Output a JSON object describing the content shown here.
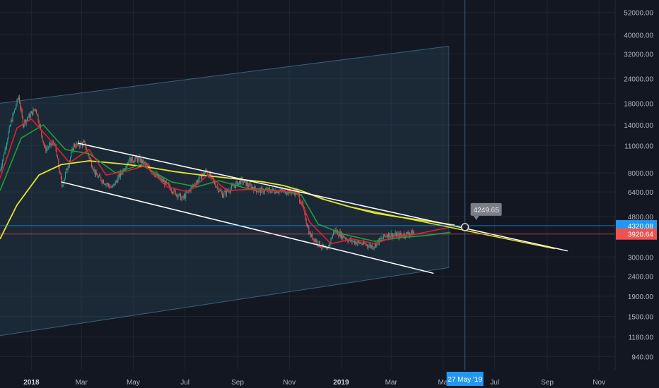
{
  "colors": {
    "background": "#131722",
    "grid": "#1f2430",
    "candle_up": "#26a69a",
    "candle_down": "#ef5350",
    "ma_fast": "#e0212e",
    "ma_mid": "#1f9e3a",
    "ma_slow": "#e7e730",
    "trendline": "#ffffff",
    "channel_fill": "#2a4a5e",
    "channel_border": "#4a8fb0",
    "price_tag_blue": "#2196f3",
    "price_tag_red": "#ef5350",
    "date_tag": "#2196f3",
    "crosshair": "#3f6e8f",
    "callout_bg": "#7b7e86"
  },
  "chart_data": {
    "type": "candlestick",
    "y_scale": "log",
    "ylim": [
      800,
      60000
    ],
    "xlim": [
      "2017-11-25",
      "2019-11-20"
    ],
    "grid": true,
    "x_tick_labels": [
      {
        "date": "2018-01-01",
        "label": "2018"
      },
      {
        "date": "2018-03-01",
        "label": "Mar"
      },
      {
        "date": "2018-05-01",
        "label": "May"
      },
      {
        "date": "2018-07-01",
        "label": "Jul"
      },
      {
        "date": "2018-09-01",
        "label": "Sep"
      },
      {
        "date": "2018-11-01",
        "label": "Nov"
      },
      {
        "date": "2019-01-01",
        "label": "2019"
      },
      {
        "date": "2019-03-01",
        "label": "Mar"
      },
      {
        "date": "2019-05-01",
        "label": "Ma"
      },
      {
        "date": "2019-07-01",
        "label": "Jul"
      },
      {
        "date": "2019-09-01",
        "label": "Sep"
      },
      {
        "date": "2019-11-01",
        "label": "Nov"
      }
    ],
    "y_tick_labels": [
      {
        "value": 52000,
        "label": "52000.00"
      },
      {
        "value": 40000,
        "label": "40000.00"
      },
      {
        "value": 32000,
        "label": "32000.00"
      },
      {
        "value": 24000,
        "label": "24000.00"
      },
      {
        "value": 18000,
        "label": "18000.00"
      },
      {
        "value": 14000,
        "label": "14000.00"
      },
      {
        "value": 11000,
        "label": "11000.00"
      },
      {
        "value": 8000,
        "label": "8000.00"
      },
      {
        "value": 6400,
        "label": "6400.00"
      },
      {
        "value": 4800,
        "label": "4800.00"
      },
      {
        "value": 3000,
        "label": "3000.00"
      },
      {
        "value": 2400,
        "label": "2400.00"
      },
      {
        "value": 1900,
        "label": "1900.00"
      },
      {
        "value": 1500,
        "label": "1500.00"
      },
      {
        "value": 1180,
        "label": "1180.00"
      },
      {
        "value": 940,
        "label": "940.00"
      }
    ],
    "price_tags": [
      {
        "value": 4320.08,
        "label": "4320.08",
        "color": "blue"
      },
      {
        "value": 3920.64,
        "label": "3920.64",
        "color": "red"
      }
    ],
    "crosshair": {
      "date": "2019-05-27",
      "label": "27 May '19"
    },
    "callout": {
      "date": "2019-05-27",
      "value": 4249.65,
      "label": "4249.65"
    },
    "channel": {
      "upper": [
        [
          "2017-11-25",
          18000
        ],
        [
          "2019-05-08",
          35000
        ]
      ],
      "lower": [
        [
          "2017-11-25",
          1200
        ],
        [
          "2019-05-08",
          2650
        ]
      ]
    },
    "trendlines": [
      {
        "name": "upper",
        "from": [
          "2018-02-25",
          11300
        ],
        "to": [
          "2019-09-25",
          3220
        ]
      },
      {
        "name": "lower",
        "from": [
          "2018-02-05",
          7200
        ],
        "to": [
          "2019-04-20",
          2480
        ]
      },
      {
        "name": "ma-projection",
        "from": [
          "2019-01-10",
          5400
        ],
        "to": [
          "2019-09-10",
          3300
        ]
      }
    ],
    "price_path": [
      [
        "2017-11-25",
        8200
      ],
      [
        "2017-12-08",
        14500
      ],
      [
        "2017-12-17",
        19500
      ],
      [
        "2017-12-22",
        14200
      ],
      [
        "2018-01-06",
        17000
      ],
      [
        "2018-01-17",
        10500
      ],
      [
        "2018-01-28",
        11400
      ],
      [
        "2018-02-06",
        6900
      ],
      [
        "2018-02-20",
        11000
      ],
      [
        "2018-03-04",
        11300
      ],
      [
        "2018-03-18",
        7800
      ],
      [
        "2018-04-06",
        6700
      ],
      [
        "2018-04-26",
        9300
      ],
      [
        "2018-05-08",
        9400
      ],
      [
        "2018-06-01",
        7500
      ],
      [
        "2018-06-28",
        5900
      ],
      [
        "2018-07-08",
        6700
      ],
      [
        "2018-07-26",
        8200
      ],
      [
        "2018-08-14",
        6200
      ],
      [
        "2018-09-05",
        7300
      ],
      [
        "2018-09-25",
        6500
      ],
      [
        "2018-10-20",
        6500
      ],
      [
        "2018-11-10",
        6400
      ],
      [
        "2018-11-16",
        5500
      ],
      [
        "2018-11-25",
        3900
      ],
      [
        "2018-12-15",
        3200
      ],
      [
        "2018-12-24",
        4100
      ],
      [
        "2019-01-10",
        3650
      ],
      [
        "2019-02-07",
        3400
      ],
      [
        "2019-02-24",
        3900
      ],
      [
        "2019-03-10",
        3850
      ],
      [
        "2019-03-28",
        4000
      ]
    ],
    "ma_fast": [
      [
        "2017-11-25",
        7500
      ],
      [
        "2017-12-15",
        13500
      ],
      [
        "2018-01-01",
        15000
      ],
      [
        "2018-01-25",
        11500
      ],
      [
        "2018-02-15",
        9000
      ],
      [
        "2018-03-10",
        10500
      ],
      [
        "2018-03-30",
        7800
      ],
      [
        "2018-04-25",
        8200
      ],
      [
        "2018-05-15",
        8700
      ],
      [
        "2018-06-10",
        6800
      ],
      [
        "2018-07-05",
        6400
      ],
      [
        "2018-07-28",
        7800
      ],
      [
        "2018-08-20",
        6500
      ],
      [
        "2018-09-15",
        6600
      ],
      [
        "2018-10-15",
        6500
      ],
      [
        "2018-11-10",
        6400
      ],
      [
        "2018-11-25",
        4500
      ],
      [
        "2018-12-20",
        3500
      ],
      [
        "2019-01-15",
        3700
      ],
      [
        "2019-02-10",
        3500
      ],
      [
        "2019-03-05",
        3800
      ],
      [
        "2019-03-28",
        3900
      ],
      [
        "2019-05-10",
        4250
      ]
    ],
    "ma_mid": [
      [
        "2017-11-25",
        6500
      ],
      [
        "2017-12-20",
        12000
      ],
      [
        "2018-01-15",
        14000
      ],
      [
        "2018-02-10",
        10500
      ],
      [
        "2018-03-10",
        10000
      ],
      [
        "2018-04-10",
        8000
      ],
      [
        "2018-05-10",
        8800
      ],
      [
        "2018-06-15",
        7200
      ],
      [
        "2018-07-15",
        6800
      ],
      [
        "2018-08-10",
        7300
      ],
      [
        "2018-09-10",
        6700
      ],
      [
        "2018-10-20",
        6500
      ],
      [
        "2018-11-15",
        6200
      ],
      [
        "2018-12-05",
        4400
      ],
      [
        "2019-01-05",
        3900
      ],
      [
        "2019-02-10",
        3600
      ],
      [
        "2019-03-10",
        3750
      ],
      [
        "2019-04-10",
        3850
      ],
      [
        "2019-05-10",
        4000
      ]
    ],
    "ma_slow": [
      [
        "2017-11-25",
        3700
      ],
      [
        "2017-12-15",
        5500
      ],
      [
        "2018-01-10",
        7800
      ],
      [
        "2018-02-05",
        8800
      ],
      [
        "2018-03-10",
        9200
      ],
      [
        "2018-04-15",
        8900
      ],
      [
        "2018-05-15",
        8600
      ],
      [
        "2018-06-20",
        8100
      ],
      [
        "2018-07-20",
        7800
      ],
      [
        "2018-08-25",
        7500
      ],
      [
        "2018-10-01",
        7200
      ],
      [
        "2018-10-25",
        6900
      ],
      [
        "2018-11-15",
        6500
      ],
      [
        "2018-12-10",
        5900
      ],
      [
        "2019-01-10",
        5400
      ],
      [
        "2019-02-10",
        5000
      ],
      [
        "2019-03-10",
        4780
      ],
      [
        "2019-04-10",
        4580
      ],
      [
        "2019-05-15",
        4350
      ]
    ]
  }
}
